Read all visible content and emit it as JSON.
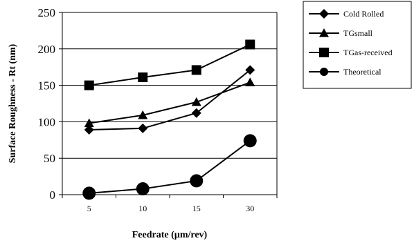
{
  "chart_data": {
    "type": "line",
    "categories": [
      "5",
      "10",
      "15",
      "30"
    ],
    "xlabel": "Feedrate (µm/rev)",
    "ylabel": "Surface Roughness - Rt (nm)",
    "ylim": [
      0,
      250
    ],
    "yticks": [
      0,
      50,
      100,
      150,
      200,
      250
    ],
    "grid": true,
    "legend_position": "top-right",
    "series": [
      {
        "name": "Cold Rolled",
        "marker": "diamond",
        "values": [
          89,
          91,
          112,
          171
        ]
      },
      {
        "name": "TGsmall",
        "marker": "triangle",
        "values": [
          98,
          109,
          127,
          154
        ]
      },
      {
        "name": "TGas-received",
        "marker": "square",
        "values": [
          150,
          161,
          171,
          206
        ]
      },
      {
        "name": "Theoretical",
        "marker": "circle",
        "values": [
          2,
          8,
          19,
          74
        ]
      }
    ],
    "colors": {
      "line": "#000000",
      "grid": "#000000",
      "background": "#ffffff"
    }
  }
}
